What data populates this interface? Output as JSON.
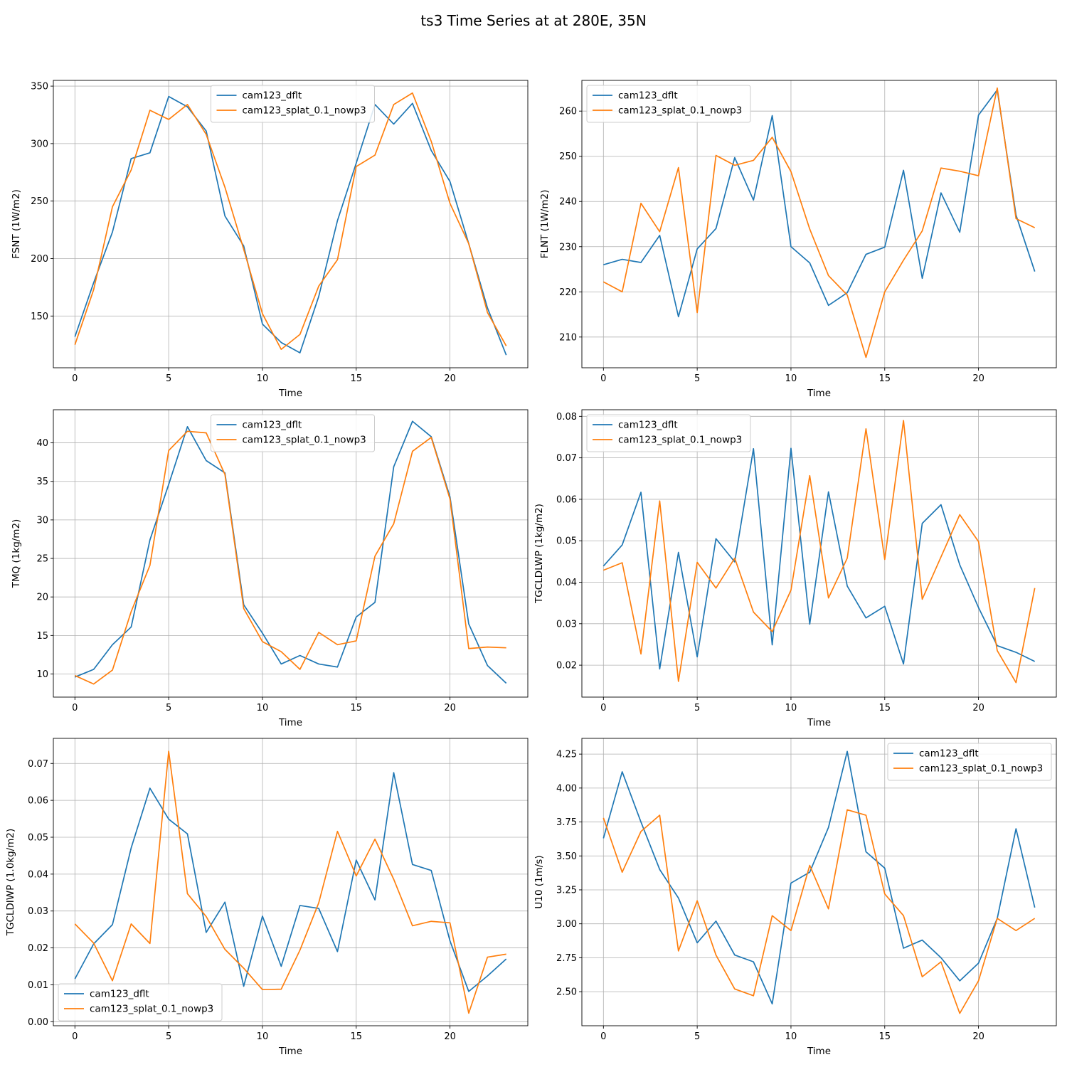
{
  "title": "ts3 Time Series at at 280E, 35N",
  "colors": {
    "series1": "#1f77b4",
    "series2": "#ff7f0e",
    "grid": "#b0b0b0"
  },
  "chart_data": [
    {
      "type": "line",
      "xlabel": "Time",
      "ylabel": "FSNT (1W/m2)",
      "xlim": [
        -1.15,
        24.15
      ],
      "ylim": [
        105,
        355
      ],
      "xticks": [
        0,
        5,
        10,
        15,
        20
      ],
      "yticks": [
        150,
        200,
        250,
        300,
        350
      ],
      "tick_decimals": 0,
      "grid": true,
      "legend": "upper-center",
      "series": [
        {
          "name": "cam123_dflt",
          "values": [
            132,
            179,
            223,
            287,
            292,
            341,
            332,
            311,
            237,
            211,
            143,
            127,
            118,
            167,
            233,
            283,
            334,
            317,
            335,
            294,
            267,
            213,
            157,
            116
          ]
        },
        {
          "name": "cam123_splat_0.1_nowp3",
          "values": [
            125,
            173,
            245,
            277,
            329,
            321,
            334,
            308,
            262,
            208,
            152,
            121,
            134,
            176,
            199,
            280,
            290,
            334,
            344,
            302,
            248,
            213,
            153,
            124
          ]
        }
      ]
    },
    {
      "type": "line",
      "xlabel": "Time",
      "ylabel": "FLNT (1W/m2)",
      "xlim": [
        -1.15,
        24.15
      ],
      "ylim": [
        203.2,
        266.8
      ],
      "xticks": [
        0,
        5,
        10,
        15,
        20
      ],
      "yticks": [
        210,
        220,
        230,
        240,
        250,
        260
      ],
      "tick_decimals": 0,
      "grid": true,
      "legend": "upper-left",
      "series": [
        {
          "name": "cam123_dflt",
          "values": [
            226.0,
            227.2,
            226.5,
            232.5,
            214.5,
            229.5,
            234.0,
            249.7,
            240.3,
            259.0,
            230.0,
            226.4,
            217.0,
            219.8,
            228.3,
            229.9,
            246.9,
            223.0,
            241.9,
            233.2,
            259.1,
            264.7,
            237.0,
            224.5
          ]
        },
        {
          "name": "cam123_splat_0.1_nowp3",
          "values": [
            222.2,
            220.0,
            239.6,
            233.3,
            247.5,
            215.4,
            250.2,
            248.0,
            249.1,
            254.2,
            246.6,
            233.9,
            223.6,
            219.3,
            205.5,
            220.0,
            227.0,
            233.5,
            247.4,
            246.7,
            245.7,
            265.1,
            236.2,
            234.2
          ]
        }
      ]
    },
    {
      "type": "line",
      "xlabel": "Time",
      "ylabel": "TMQ (1kg/m2)",
      "xlim": [
        -1.15,
        24.15
      ],
      "ylim": [
        7.0,
        44.3
      ],
      "xticks": [
        0,
        5,
        10,
        15,
        20
      ],
      "yticks": [
        10,
        15,
        20,
        25,
        30,
        35,
        40
      ],
      "tick_decimals": 0,
      "grid": true,
      "legend": "upper-center",
      "series": [
        {
          "name": "cam123_dflt",
          "values": [
            9.6,
            10.6,
            13.8,
            16.1,
            27.4,
            34.6,
            42.1,
            37.7,
            36.1,
            19.0,
            15.3,
            11.3,
            12.4,
            11.3,
            10.9,
            17.4,
            19.3,
            36.9,
            42.8,
            40.8,
            33.0,
            16.5,
            11.1,
            8.8
          ]
        },
        {
          "name": "cam123_splat_0.1_nowp3",
          "values": [
            9.8,
            8.7,
            10.5,
            18.1,
            24.1,
            39.0,
            41.5,
            41.3,
            35.9,
            18.5,
            14.2,
            12.9,
            10.6,
            15.4,
            13.8,
            14.3,
            25.3,
            29.5,
            38.9,
            40.7,
            32.7,
            13.3,
            13.5,
            13.4
          ]
        }
      ]
    },
    {
      "type": "line",
      "xlabel": "Time",
      "ylabel": "TGCLDLWP (1kg/m2)",
      "xlim": [
        -1.15,
        24.15
      ],
      "ylim": [
        0.0123,
        0.0816
      ],
      "xticks": [
        0,
        5,
        10,
        15,
        20
      ],
      "yticks": [
        0.02,
        0.03,
        0.04,
        0.05,
        0.06,
        0.07,
        0.08
      ],
      "tick_decimals": 2,
      "grid": true,
      "legend": "upper-left",
      "series": [
        {
          "name": "cam123_dflt",
          "values": [
            0.0439,
            0.049,
            0.0617,
            0.0191,
            0.0472,
            0.022,
            0.0505,
            0.0449,
            0.0722,
            0.0249,
            0.0723,
            0.0299,
            0.0618,
            0.0391,
            0.0314,
            0.0342,
            0.0203,
            0.0542,
            0.0587,
            0.0442,
            0.0339,
            0.0247,
            0.0231,
            0.0209
          ]
        },
        {
          "name": "cam123_splat_0.1_nowp3",
          "values": [
            0.0429,
            0.0447,
            0.0227,
            0.0596,
            0.0161,
            0.0448,
            0.0386,
            0.0458,
            0.0328,
            0.0281,
            0.0381,
            0.0657,
            0.0362,
            0.0458,
            0.077,
            0.0455,
            0.079,
            0.0359,
            0.0461,
            0.0563,
            0.0498,
            0.0235,
            0.0158,
            0.0386
          ]
        }
      ]
    },
    {
      "type": "line",
      "xlabel": "Time",
      "ylabel": "TGCLDIWP (1.0kg/m2)",
      "xlim": [
        -1.15,
        24.15
      ],
      "ylim": [
        -0.0011,
        0.0768
      ],
      "xticks": [
        0,
        5,
        10,
        15,
        20
      ],
      "yticks": [
        0.0,
        0.01,
        0.02,
        0.03,
        0.04,
        0.05,
        0.06,
        0.07
      ],
      "tick_decimals": 2,
      "grid": true,
      "legend": "lower-left",
      "series": [
        {
          "name": "cam123_dflt",
          "values": [
            0.0116,
            0.0211,
            0.0263,
            0.0471,
            0.0633,
            0.0549,
            0.0509,
            0.0242,
            0.0324,
            0.0096,
            0.0286,
            0.015,
            0.0315,
            0.0307,
            0.019,
            0.0438,
            0.033,
            0.0675,
            0.0426,
            0.041,
            0.0219,
            0.0082,
            0.0124,
            0.017
          ]
        },
        {
          "name": "cam123_splat_0.1_nowp3",
          "values": [
            0.0265,
            0.0213,
            0.0111,
            0.0265,
            0.0212,
            0.0733,
            0.0347,
            0.0285,
            0.0196,
            0.0145,
            0.0087,
            0.0088,
            0.0194,
            0.0322,
            0.0516,
            0.0395,
            0.0495,
            0.0386,
            0.026,
            0.0272,
            0.0268,
            0.0023,
            0.0175,
            0.0183
          ]
        }
      ]
    },
    {
      "type": "line",
      "xlabel": "Time",
      "ylabel": "U10 (1m/s)",
      "xlim": [
        -1.15,
        24.15
      ],
      "ylim": [
        2.249,
        4.366
      ],
      "xticks": [
        0,
        5,
        10,
        15,
        20
      ],
      "yticks": [
        2.5,
        2.75,
        3.0,
        3.25,
        3.5,
        3.75,
        4.0,
        4.25
      ],
      "tick_decimals": 2,
      "grid": true,
      "legend": "upper-right",
      "series": [
        {
          "name": "cam123_dflt",
          "values": [
            3.63,
            4.12,
            3.75,
            3.4,
            3.19,
            2.86,
            3.02,
            2.77,
            2.72,
            2.41,
            3.3,
            3.38,
            3.71,
            4.27,
            3.53,
            3.41,
            2.82,
            2.88,
            2.75,
            2.58,
            2.71,
            3.04,
            3.7,
            3.12
          ]
        },
        {
          "name": "cam123_splat_0.1_nowp3",
          "values": [
            3.78,
            3.38,
            3.68,
            3.8,
            2.8,
            3.17,
            2.77,
            2.52,
            2.47,
            3.06,
            2.95,
            3.43,
            3.11,
            3.84,
            3.8,
            3.22,
            3.06,
            2.61,
            2.72,
            2.34,
            2.58,
            3.04,
            2.95,
            3.04
          ]
        }
      ]
    }
  ]
}
